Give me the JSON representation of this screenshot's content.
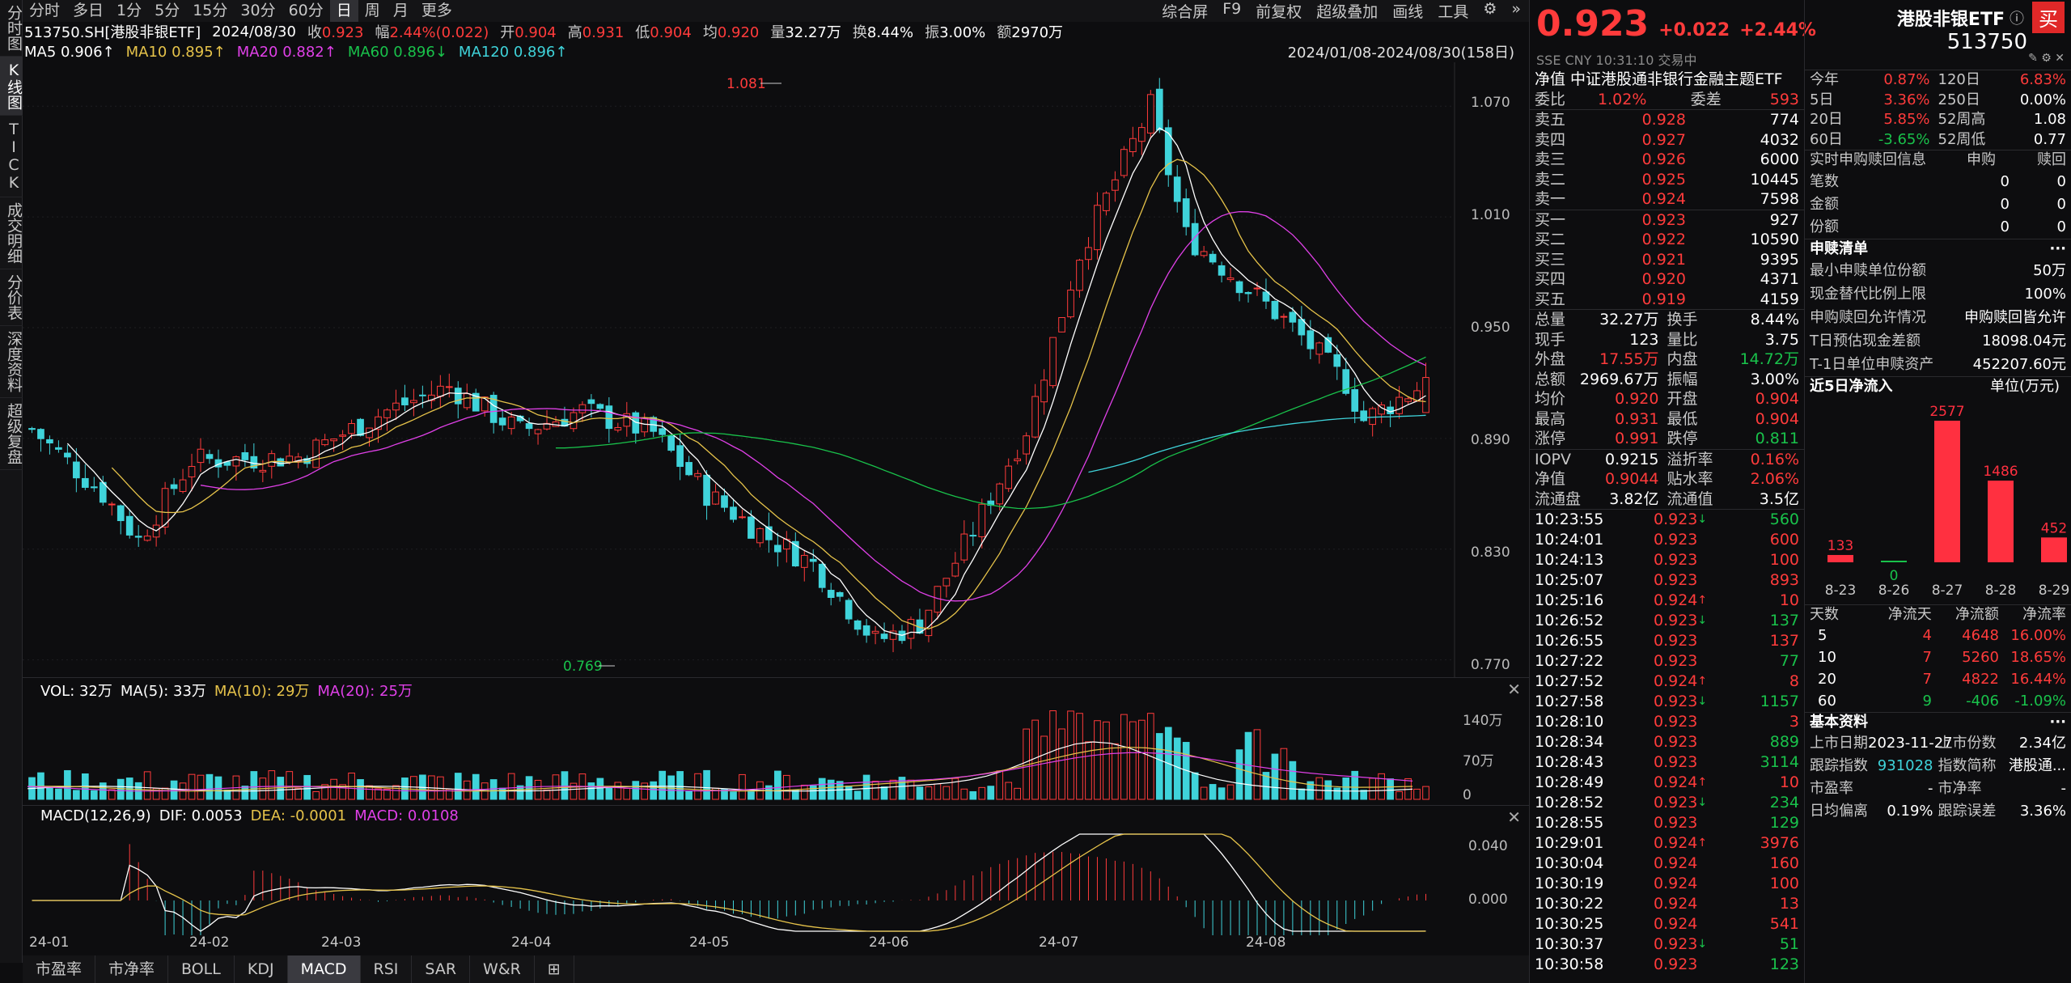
{
  "left_tabs": [
    "分时图",
    "K线图",
    "TICK",
    "成交明细",
    "分价表",
    "深度资料",
    "超级复盘"
  ],
  "period_tabs": [
    "分时",
    "多日",
    "1分",
    "5分",
    "15分",
    "30分",
    "60分",
    "日",
    "周",
    "月",
    "更多"
  ],
  "active_period": "日",
  "toolbar_right": [
    "综合屏",
    "F9",
    "前复权",
    "超级叠加",
    "画线",
    "工具"
  ],
  "info": {
    "code": "513750.SH[港股非银ETF]",
    "date": "2024/08/30",
    "close_label": "收",
    "close": "0.923",
    "chg_label": "幅",
    "chg": "2.44%(0.022)",
    "open_label": "开",
    "open": "0.904",
    "high_label": "高",
    "high": "0.931",
    "low_label": "低",
    "low": "0.904",
    "avg_label": "均",
    "avg": "0.920",
    "vol_label": "量",
    "vol": "32.27万",
    "turn_label": "换",
    "turn": "8.44%",
    "amp_label": "振",
    "amp": "3.00%",
    "amt_label": "额",
    "amt": "2970万"
  },
  "ma": {
    "ma5": "MA5 0.906↑",
    "ma10": "MA10 0.895↑",
    "ma20": "MA20 0.882↑",
    "ma60": "MA60 0.896↓",
    "ma120": "MA120 0.896↑",
    "range": "2024/01/08-2024/08/30(158日)"
  },
  "colors": {
    "up": "#ff3b3b",
    "down": "#3fd3da",
    "ma5": "#ffffff",
    "ma10": "#e6c34a",
    "ma20": "#e040e8",
    "ma60": "#19c24b",
    "ma120": "#3fd3da"
  },
  "price_axis": [
    "1.070",
    "1.010",
    "0.950",
    "0.890",
    "0.830",
    "0.770"
  ],
  "price_marks": {
    "high": "1.081",
    "low": "0.769"
  },
  "vol_head": {
    "vol": "VOL: 32万",
    "ma5": "MA(5): 33万",
    "ma10": "MA(10): 29万",
    "ma20": "MA(20): 25万"
  },
  "vol_axis": [
    "140万",
    "70万",
    "0"
  ],
  "macd_head": {
    "title": "MACD(12,26,9)",
    "dif": "DIF: 0.0053",
    "dea": "DEA: -0.0001",
    "macd": "MACD: 0.0108"
  },
  "macd_axis": [
    "0.040",
    "0.000"
  ],
  "dates": [
    "24-01",
    "24-02",
    "24-03",
    "24-04",
    "24-05",
    "24-06",
    "24-07",
    "24-08"
  ],
  "bottom_tabs": [
    "市盈率",
    "市净率",
    "BOLL",
    "KDJ",
    "MACD",
    "RSI",
    "SAR",
    "W&R"
  ],
  "active_bottom": "MACD",
  "quote": {
    "price": "0.923",
    "chg": "+0.022",
    "pct": "+2.44%",
    "name": "港股非银ETF",
    "code": "513750",
    "meta": "SSE  CNY  10:31:10  交易中",
    "buy_label": "买"
  },
  "nav_title": "净值 中证港股通非银行金融主题ETF",
  "order_ratio": {
    "l1": "委比",
    "v1": "1.02%",
    "l2": "委差",
    "v2": "593"
  },
  "asks": [
    {
      "l": "卖五",
      "p": "0.928",
      "v": "774"
    },
    {
      "l": "卖四",
      "p": "0.927",
      "v": "4032"
    },
    {
      "l": "卖三",
      "p": "0.926",
      "v": "6000"
    },
    {
      "l": "卖二",
      "p": "0.925",
      "v": "10445"
    },
    {
      "l": "卖一",
      "p": "0.924",
      "v": "7598"
    }
  ],
  "bids": [
    {
      "l": "买一",
      "p": "0.923",
      "v": "927"
    },
    {
      "l": "买二",
      "p": "0.922",
      "v": "10590"
    },
    {
      "l": "买三",
      "p": "0.921",
      "v": "9395"
    },
    {
      "l": "买四",
      "p": "0.920",
      "v": "4371"
    },
    {
      "l": "买五",
      "p": "0.919",
      "v": "4159"
    }
  ],
  "stats": [
    {
      "l1": "总量",
      "v1": "32.27万",
      "c1": "white",
      "l2": "换手",
      "v2": "8.44%",
      "c2": "white"
    },
    {
      "l1": "现手",
      "v1": "123",
      "c1": "white",
      "l2": "量比",
      "v2": "3.75",
      "c2": "white"
    },
    {
      "l1": "外盘",
      "v1": "17.55万",
      "c1": "red",
      "l2": "内盘",
      "v2": "14.72万",
      "c2": "green"
    },
    {
      "l1": "总额",
      "v1": "2969.67万",
      "c1": "white",
      "l2": "振幅",
      "v2": "3.00%",
      "c2": "white"
    },
    {
      "l1": "均价",
      "v1": "0.920",
      "c1": "red",
      "l2": "开盘",
      "v2": "0.904",
      "c2": "red"
    },
    {
      "l1": "最高",
      "v1": "0.931",
      "c1": "red",
      "l2": "最低",
      "v2": "0.904",
      "c2": "red"
    },
    {
      "l1": "涨停",
      "v1": "0.991",
      "c1": "red",
      "l2": "跌停",
      "v2": "0.811",
      "c2": "green"
    }
  ],
  "iopv": [
    {
      "l1": "IOPV",
      "v1": "0.9215",
      "c1": "white",
      "l2": "溢折率",
      "v2": "0.16%",
      "c2": "red"
    },
    {
      "l1": "净值",
      "v1": "0.9044",
      "c1": "red",
      "l2": "贴水率",
      "v2": "2.06%",
      "c2": "red"
    },
    {
      "l1": "流通盘",
      "v1": "3.82亿",
      "c1": "white",
      "l2": "流通值",
      "v2": "3.5亿",
      "c2": "white"
    }
  ],
  "ticks": [
    {
      "t": "10:23:55",
      "p": "0.923",
      "a": "↓",
      "v": "560",
      "c": "green"
    },
    {
      "t": "10:24:01",
      "p": "0.923",
      "a": "",
      "v": "600",
      "c": "red"
    },
    {
      "t": "10:24:13",
      "p": "0.923",
      "a": "",
      "v": "100",
      "c": "red"
    },
    {
      "t": "10:25:07",
      "p": "0.923",
      "a": "",
      "v": "893",
      "c": "red"
    },
    {
      "t": "10:25:16",
      "p": "0.924",
      "a": "↑",
      "v": "10",
      "c": "red"
    },
    {
      "t": "10:26:52",
      "p": "0.923",
      "a": "↓",
      "v": "137",
      "c": "green"
    },
    {
      "t": "10:26:55",
      "p": "0.923",
      "a": "",
      "v": "137",
      "c": "red"
    },
    {
      "t": "10:27:22",
      "p": "0.923",
      "a": "",
      "v": "77",
      "c": "green"
    },
    {
      "t": "10:27:52",
      "p": "0.924",
      "a": "↑",
      "v": "8",
      "c": "red"
    },
    {
      "t": "10:27:58",
      "p": "0.923",
      "a": "↓",
      "v": "1157",
      "c": "green"
    },
    {
      "t": "10:28:10",
      "p": "0.923",
      "a": "",
      "v": "3",
      "c": "red"
    },
    {
      "t": "10:28:34",
      "p": "0.923",
      "a": "",
      "v": "889",
      "c": "green"
    },
    {
      "t": "10:28:43",
      "p": "0.923",
      "a": "",
      "v": "3114",
      "c": "green"
    },
    {
      "t": "10:28:49",
      "p": "0.924",
      "a": "↑",
      "v": "10",
      "c": "red"
    },
    {
      "t": "10:28:52",
      "p": "0.923",
      "a": "↓",
      "v": "234",
      "c": "green"
    },
    {
      "t": "10:28:55",
      "p": "0.923",
      "a": "",
      "v": "129",
      "c": "green"
    },
    {
      "t": "10:29:01",
      "p": "0.924",
      "a": "↑",
      "v": "3976",
      "c": "red"
    },
    {
      "t": "10:30:04",
      "p": "0.924",
      "a": "",
      "v": "160",
      "c": "red"
    },
    {
      "t": "10:30:19",
      "p": "0.924",
      "a": "",
      "v": "100",
      "c": "red"
    },
    {
      "t": "10:30:22",
      "p": "0.924",
      "a": "",
      "v": "13",
      "c": "red"
    },
    {
      "t": "10:30:25",
      "p": "0.924",
      "a": "",
      "v": "541",
      "c": "red"
    },
    {
      "t": "10:30:37",
      "p": "0.923",
      "a": "↓",
      "v": "51",
      "c": "green"
    },
    {
      "t": "10:30:58",
      "p": "0.923",
      "a": "",
      "v": "123",
      "c": "green"
    }
  ],
  "perf": [
    {
      "l1": "今年",
      "v1": "0.87%",
      "c1": "red",
      "l2": "120日",
      "v2": "6.83%",
      "c2": "red"
    },
    {
      "l1": "5日",
      "v1": "3.36%",
      "c1": "red",
      "l2": "250日",
      "v2": "0.00%",
      "c2": "white"
    },
    {
      "l1": "20日",
      "v1": "5.85%",
      "c1": "red",
      "l2": "52周高",
      "v2": "1.08",
      "c2": "white"
    },
    {
      "l1": "60日",
      "v1": "-3.65%",
      "c1": "green",
      "l2": "52周低",
      "v2": "0.77",
      "c2": "white"
    }
  ],
  "redeem": {
    "head": [
      "实时申购赎回信息",
      "申购",
      "赎回"
    ],
    "rows": [
      {
        "l": "笔数",
        "a": "0",
        "b": "0"
      },
      {
        "l": "金额",
        "a": "0",
        "b": "0"
      },
      {
        "l": "份额",
        "a": "0",
        "b": "0"
      }
    ]
  },
  "list_title": "申赎清单",
  "list": [
    {
      "l": "最小申赎单位份额",
      "v": "50万"
    },
    {
      "l": "现金替代比例上限",
      "v": "100%"
    },
    {
      "l": "申购赎回允许情况",
      "v": "申购赎回皆允许"
    },
    {
      "l": "T日预估现金差额",
      "v": "18098.04元"
    },
    {
      "l": "T-1日单位申赎资产",
      "v": "452207.60元"
    }
  ],
  "inflow_title": "近5日净流入",
  "inflow_unit": "单位(万元)",
  "chart_data": {
    "type": "bar",
    "categories": [
      "8-23",
      "8-26",
      "8-27",
      "8-28",
      "8-29"
    ],
    "values": [
      133,
      0,
      2577,
      1486,
      452
    ],
    "title": "近5日净流入",
    "ylabel": "单位(万元)"
  },
  "flow_head": [
    "天数",
    "净流天",
    "净流额",
    "净流率"
  ],
  "flow": [
    {
      "d": "5",
      "n": "4",
      "a": "4648",
      "r": "16.00%",
      "c": "red"
    },
    {
      "d": "10",
      "n": "7",
      "a": "5260",
      "r": "18.65%",
      "c": "red"
    },
    {
      "d": "20",
      "n": "7",
      "a": "4822",
      "r": "16.44%",
      "c": "red"
    },
    {
      "d": "60",
      "n": "9",
      "a": "-406",
      "r": "-1.09%",
      "c": "green"
    }
  ],
  "basic_title": "基本资料",
  "basic": [
    {
      "l1": "上市日期",
      "v1": "2023-11-27",
      "l2": "上市份数",
      "v2": "2.34亿"
    },
    {
      "l1": "跟踪指数",
      "v1": "931028",
      "l2": "指数简称",
      "v2": "港股通..."
    },
    {
      "l1": "市盈率",
      "v1": "-",
      "l2": "市净率",
      "v2": "-"
    },
    {
      "l1": "日均偏离",
      "v1": "0.19%",
      "l2": "跟踪误差",
      "v2": "3.36%"
    }
  ]
}
